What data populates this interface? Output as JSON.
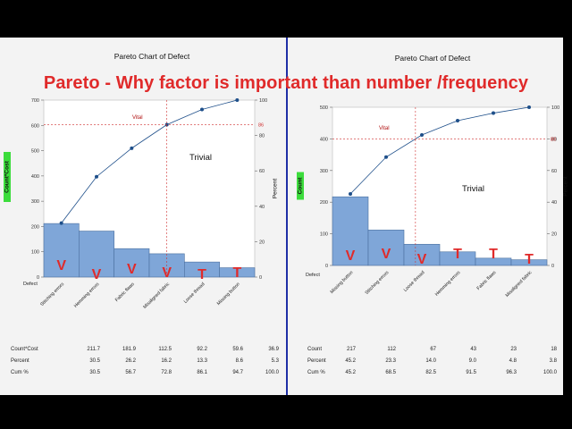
{
  "banner": "Pareto - Why factor is important than number /frequency",
  "chart_data": [
    {
      "type": "bar",
      "title": "Pareto Chart of Defect",
      "xlabel": "Defect",
      "ylabel": "Count*Cost",
      "y2label": "Percent",
      "categories": [
        "Stitching errors",
        "Hemming errors",
        "Fabric flaws",
        "Misaligned fabric",
        "Loose thread",
        "Missing button"
      ],
      "values": [
        211.7,
        181.9,
        112.5,
        92.2,
        59.6,
        36.9
      ],
      "cumulative_percent": [
        30.5,
        56.7,
        72.8,
        86.1,
        94.7,
        100.0
      ],
      "ylim": [
        0,
        700
      ],
      "yticks": [
        0,
        100,
        200,
        300,
        400,
        500,
        600,
        700
      ],
      "y2lim": [
        0,
        100
      ],
      "y2ticks": [
        0,
        20,
        40,
        60,
        80,
        100
      ],
      "reference_line_percent": 86,
      "reference_label": "86",
      "vital_label": "Vital",
      "trivial_label": "Trivial",
      "annotations": [
        "V",
        "V",
        "V",
        "V",
        "T",
        "T"
      ],
      "table": {
        "rows": [
          {
            "label": "Count*Cost",
            "values": [
              "211.7",
              "181.9",
              "112.5",
              "92.2",
              "59.6",
              "36.9"
            ]
          },
          {
            "label": "Percent",
            "values": [
              "30.5",
              "26.2",
              "16.2",
              "13.3",
              "8.6",
              "5.3"
            ]
          },
          {
            "label": "Cum %",
            "values": [
              "30.5",
              "56.7",
              "72.8",
              "86.1",
              "94.7",
              "100.0"
            ]
          }
        ]
      }
    },
    {
      "type": "bar",
      "title": "Pareto Chart of Defect",
      "xlabel": "Defect",
      "ylabel": "Count",
      "y2label": "Percent",
      "categories": [
        "Missing button",
        "Stitching errors",
        "Loose thread",
        "Hemming errors",
        "Fabric flaws",
        "Misaligned fabric"
      ],
      "values": [
        217,
        112,
        67,
        43,
        23,
        18
      ],
      "cumulative_percent": [
        45.2,
        68.5,
        82.5,
        91.5,
        96.3,
        100.0
      ],
      "ylim": [
        0,
        500
      ],
      "yticks": [
        0,
        100,
        200,
        300,
        400,
        500
      ],
      "y2lim": [
        0,
        100
      ],
      "y2ticks": [
        0,
        20,
        40,
        60,
        80,
        100
      ],
      "reference_line_percent": 80,
      "reference_label": "80",
      "vital_label": "Vital",
      "trivial_label": "Trivial",
      "annotations": [
        "V",
        "V",
        "V",
        "T",
        "T",
        "T"
      ],
      "table": {
        "rows": [
          {
            "label": "Count",
            "values": [
              "217",
              "112",
              "67",
              "43",
              "23",
              "18"
            ]
          },
          {
            "label": "Percent",
            "values": [
              "45.2",
              "23.3",
              "14.0",
              "9.0",
              "4.8",
              "3.8"
            ]
          },
          {
            "label": "Cum %",
            "values": [
              "45.2",
              "68.5",
              "82.5",
              "91.5",
              "96.3",
              "100.0"
            ]
          }
        ]
      }
    }
  ],
  "colors": {
    "bar_fill": "#7fa6d8",
    "bar_stroke": "#4a6f9e",
    "line": "#1e4f8a",
    "ref_line": "#d03030",
    "annotation": "#e02a2a",
    "ylabel_highlight": "#3cdc3c"
  }
}
